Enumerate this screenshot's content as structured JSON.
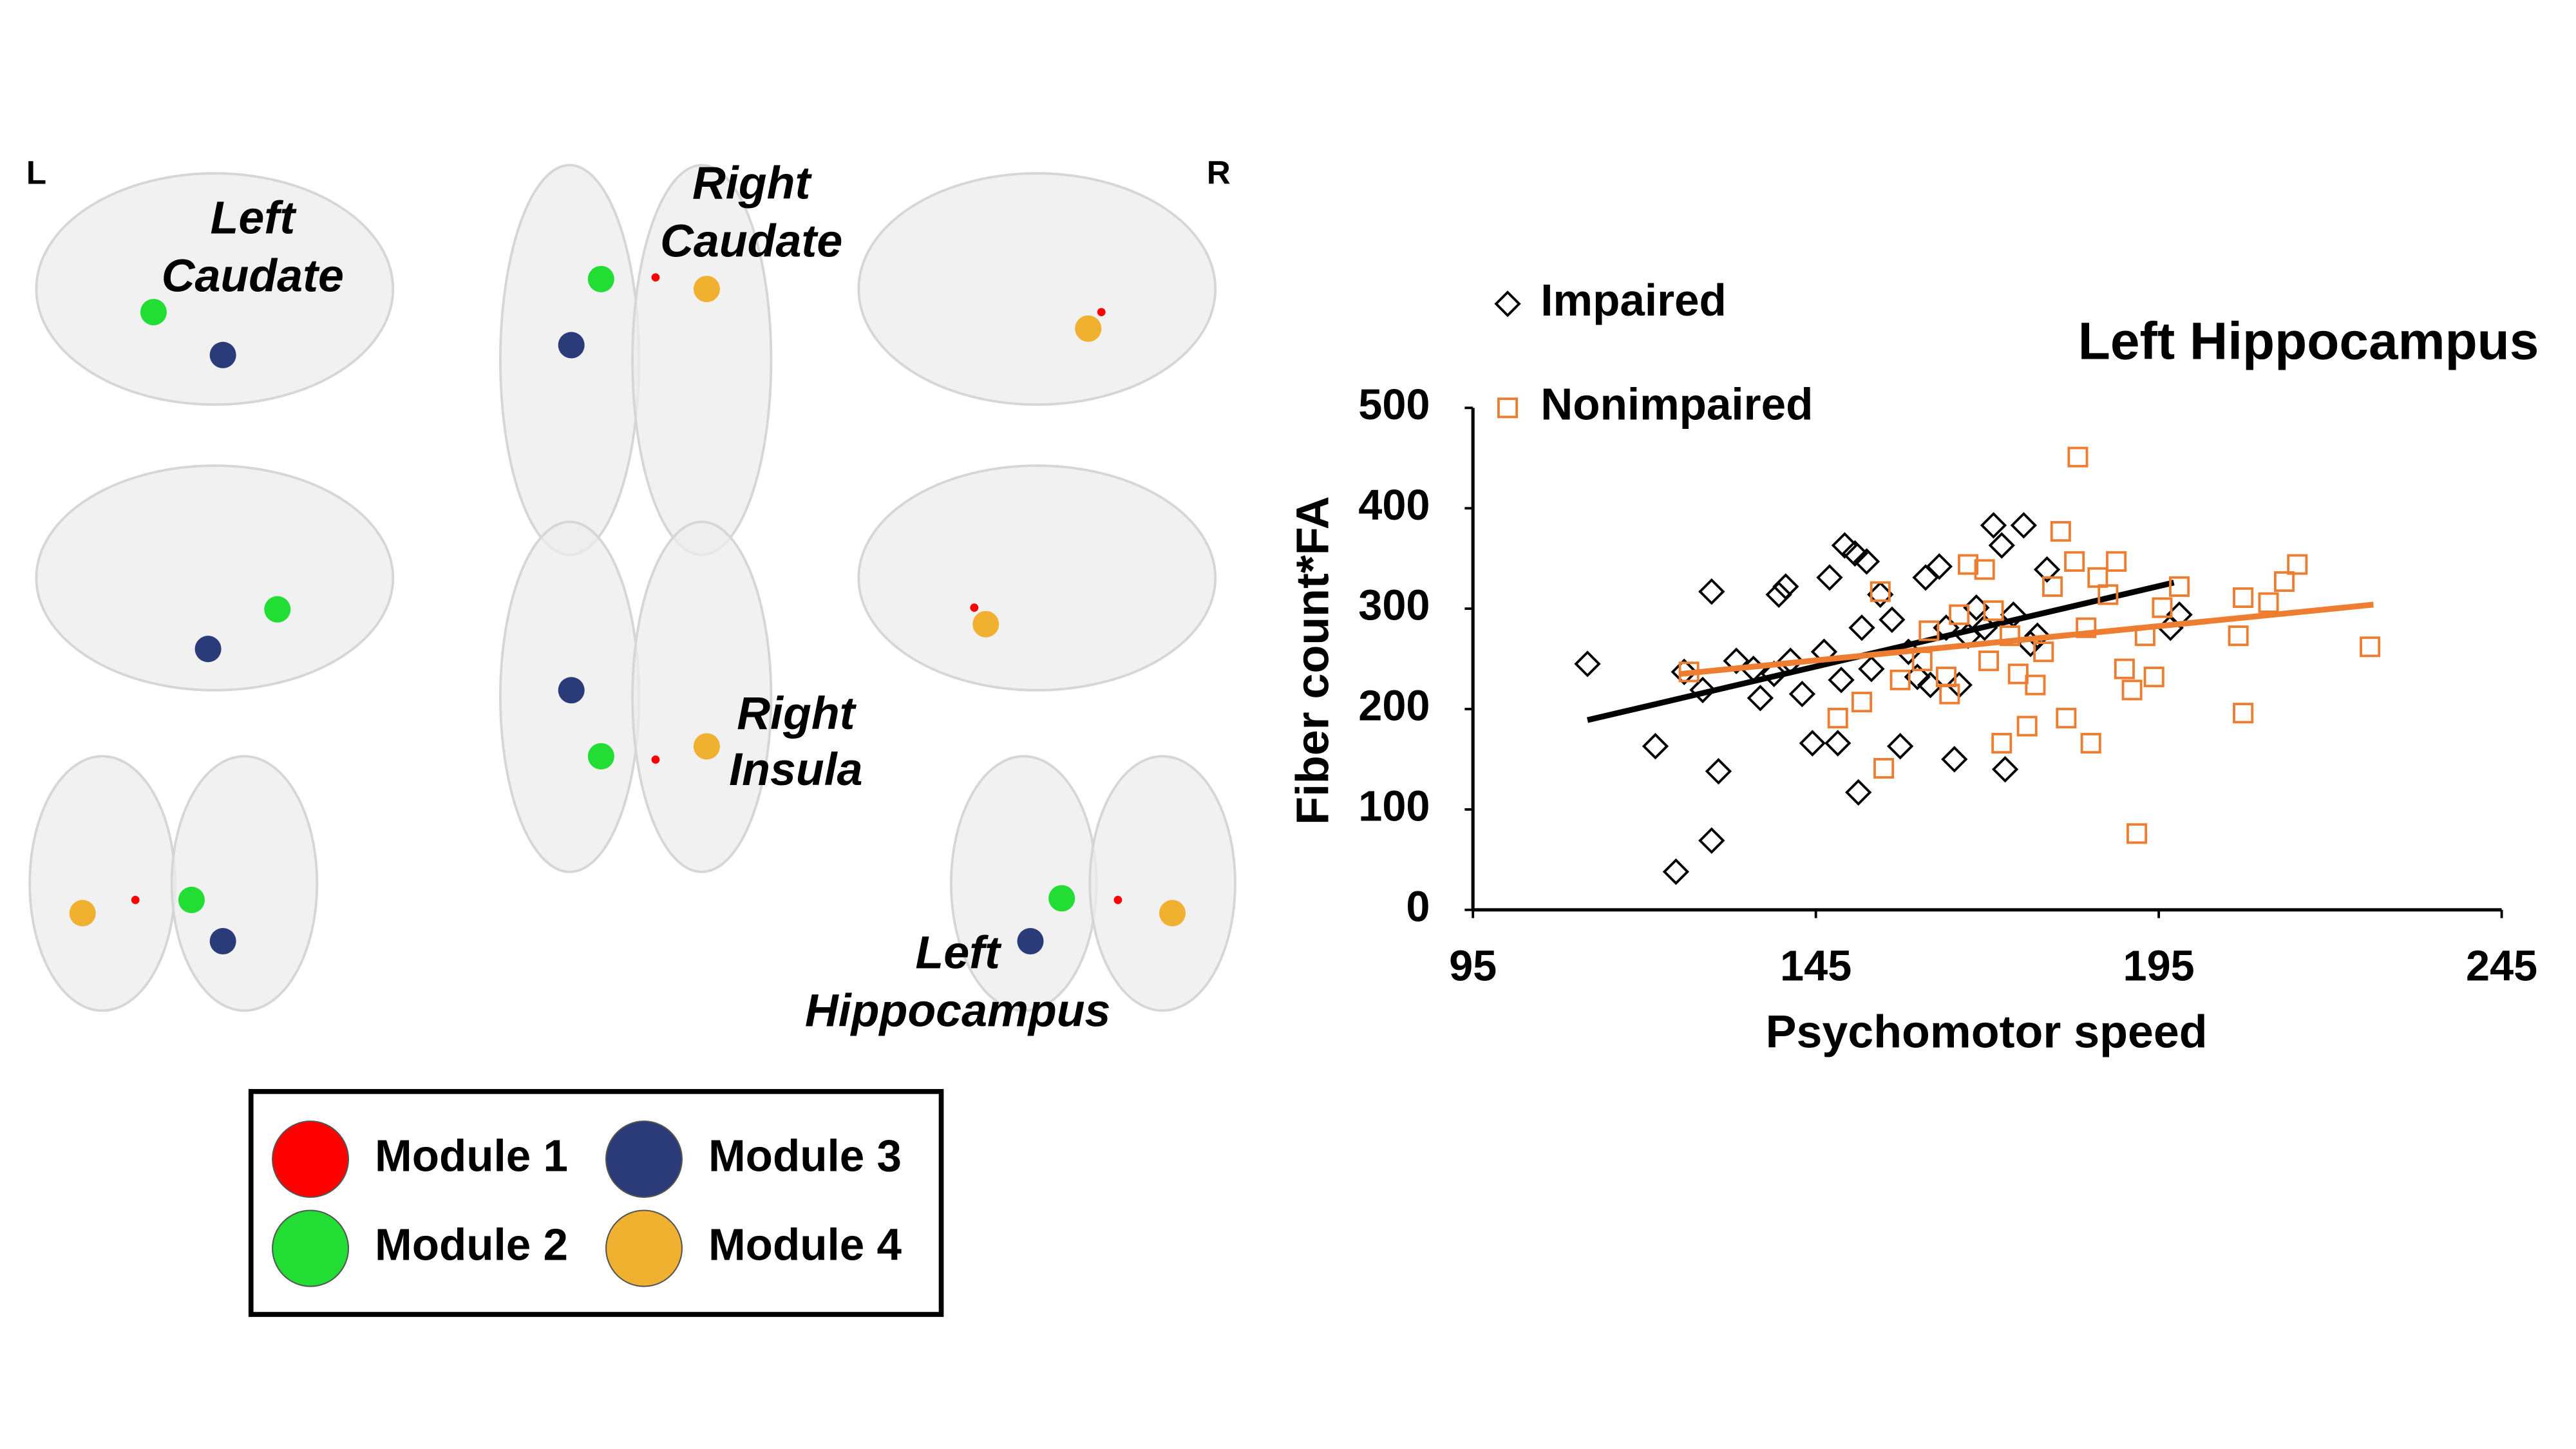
{
  "brain_panel": {
    "side_labels": [
      "L",
      "R"
    ],
    "region_labels": [
      [
        "Left",
        "Caudate"
      ],
      [
        "Right",
        "Caudate"
      ],
      [
        "Right",
        "Insula"
      ],
      [
        "Left",
        "Hippocampus"
      ]
    ],
    "modules": [
      {
        "name": "Module 1",
        "color": "#ff0000"
      },
      {
        "name": "Module 2",
        "color": "#22dd33"
      },
      {
        "name": "Module 3",
        "color": "#2b3a78"
      },
      {
        "name": "Module 4",
        "color": "#f0b030"
      }
    ]
  },
  "chart_data": {
    "type": "scatter",
    "title": "Left Hippocampus",
    "x_label": "Psychomotor speed",
    "y_label": "Fiber count*FA",
    "xlim": [
      95,
      245
    ],
    "xticks": [
      95,
      145,
      195,
      245
    ],
    "ylim": [
      0,
      500
    ],
    "yticks": [
      0,
      100,
      200,
      300,
      400,
      500
    ],
    "grid": false,
    "legend": "top-left",
    "series": [
      {
        "name": "Impaired",
        "color": "#000000",
        "marker": "diamond",
        "x": [
          111.7,
          121.6,
          124.6,
          129.8,
          130.8,
          129.8,
          125.8,
          128.5,
          133.4,
          136.9,
          138.9,
          139.6,
          140.6,
          141.3,
          143.0,
          144.5,
          146.2,
          147.0,
          148.2,
          149.2,
          150.7,
          151.2,
          151.7,
          152.4,
          153.1,
          154.4,
          156.1,
          157.3,
          158.5,
          159.8,
          161.0,
          161.7,
          163.0,
          164.0,
          165.2,
          165.9,
          167.2,
          168.4,
          169.6,
          170.9,
          172.1,
          172.6,
          173.8,
          175.3,
          176.3,
          177.3,
          178.7,
          196.7,
          198.0,
          135.9,
          148.7
        ],
        "values": [
          245,
          163,
          38,
          69,
          138,
          317,
          237,
          219,
          248,
          211,
          235,
          314,
          322,
          248,
          215,
          166,
          257,
          331,
          166,
          363,
          355,
          117,
          281,
          347,
          240,
          314,
          289,
          163,
          257,
          232,
          331,
          224,
          342,
          281,
          150,
          224,
          273,
          301,
          281,
          383,
          363,
          140,
          294,
          383,
          265,
          273,
          339,
          281,
          294,
          240,
          229
        ],
        "trendline": {
          "x": [
            111.7,
            197.2
          ],
          "y": [
            189,
            326
          ]
        }
      },
      {
        "name": "Nonimpaired",
        "color": "#ed7d31",
        "marker": "square",
        "x": [
          126.5,
          148.2,
          151.7,
          154.9,
          154.4,
          157.3,
          160.5,
          161.5,
          164.0,
          165.9,
          167.2,
          169.6,
          170.9,
          172.1,
          173.3,
          174.5,
          175.8,
          177.0,
          178.2,
          179.5,
          180.7,
          181.5,
          182.7,
          183.2,
          184.4,
          185.1,
          186.1,
          187.6,
          188.8,
          190.0,
          191.1,
          191.8,
          193.0,
          194.3,
          195.5,
          198.0,
          206.6,
          207.3,
          207.3,
          211.0,
          213.3,
          215.2,
          225.8,
          164.5,
          170.2
        ],
        "values": [
          237,
          191,
          207,
          141,
          317,
          229,
          248,
          278,
          232,
          294,
          344,
          339,
          298,
          166,
          273,
          235,
          183,
          224,
          257,
          322,
          377,
          191,
          347,
          451,
          281,
          166,
          331,
          314,
          347,
          240,
          219,
          76,
          273,
          232,
          301,
          322,
          273,
          196,
          311,
          306,
          327,
          344,
          262,
          215,
          248
        ],
        "trendline": {
          "x": [
            125.3,
            226.3
          ],
          "y": [
            235,
            304
          ]
        }
      }
    ]
  }
}
